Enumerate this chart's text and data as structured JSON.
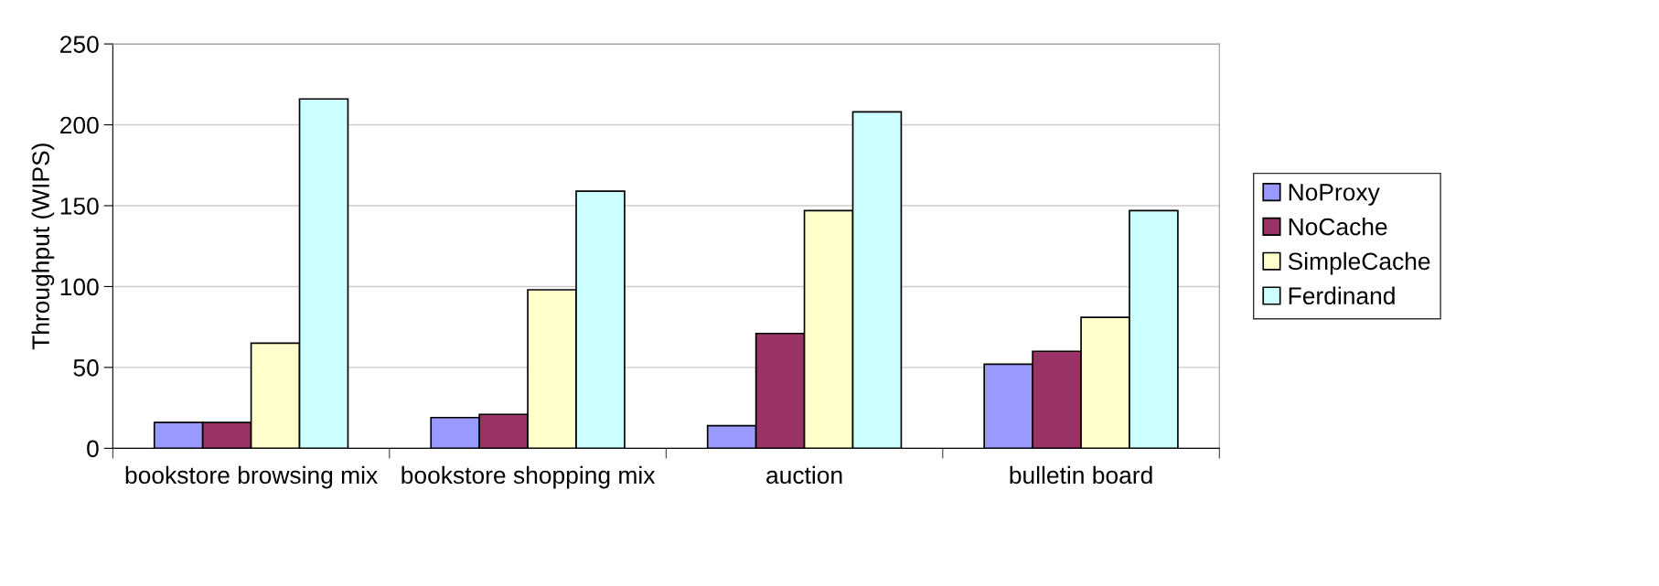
{
  "chart_data": {
    "type": "bar",
    "ylabel": "Throughput (WIPS)",
    "categories": [
      "bookstore browsing mix",
      "bookstore shopping mix",
      "auction",
      "bulletin board"
    ],
    "series": [
      {
        "name": "NoProxy",
        "color": "#9999ff",
        "values": [
          16,
          19,
          14,
          52
        ]
      },
      {
        "name": "NoCache",
        "color": "#993366",
        "values": [
          16,
          21,
          71,
          60
        ]
      },
      {
        "name": "SimpleCache",
        "color": "#ffffcc",
        "values": [
          65,
          98,
          147,
          81
        ]
      },
      {
        "name": "Ferdinand",
        "color": "#ccffff",
        "values": [
          216,
          159,
          208,
          147
        ]
      }
    ],
    "ylim": [
      0,
      250
    ],
    "yticks": [
      0,
      50,
      100,
      150,
      200,
      250
    ],
    "grid": "y",
    "legend": "right"
  }
}
